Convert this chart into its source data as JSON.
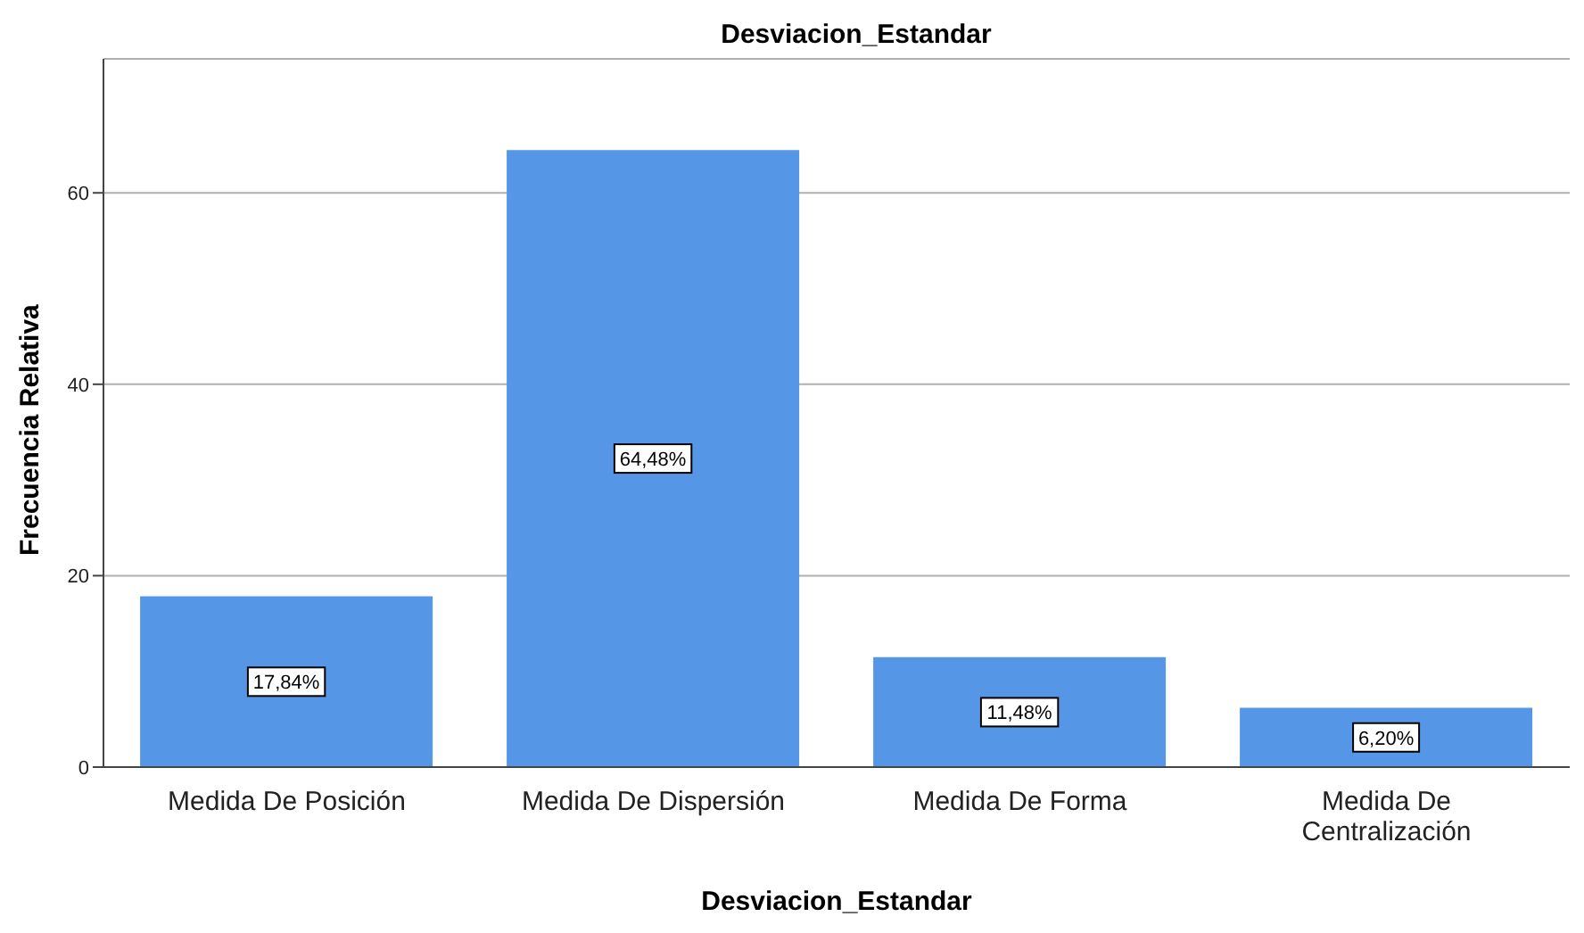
{
  "chart_data": {
    "type": "bar",
    "title": "Desviacion_Estandar",
    "xlabel": "Desviacion_Estandar",
    "ylabel": "Frecuencia Relativa",
    "categories": [
      "Medida De Posición",
      "Medida De Dispersión",
      "Medida De Forma",
      "Medida De Centralización"
    ],
    "values": [
      17.84,
      64.48,
      11.48,
      6.2
    ],
    "value_labels": [
      "17,84%",
      "64,48%",
      "11,48%",
      "6,20%"
    ],
    "color": "#5596e6",
    "ylim": [
      0,
      74
    ],
    "yticks": [
      0,
      20,
      40,
      60
    ],
    "grid": "y"
  }
}
